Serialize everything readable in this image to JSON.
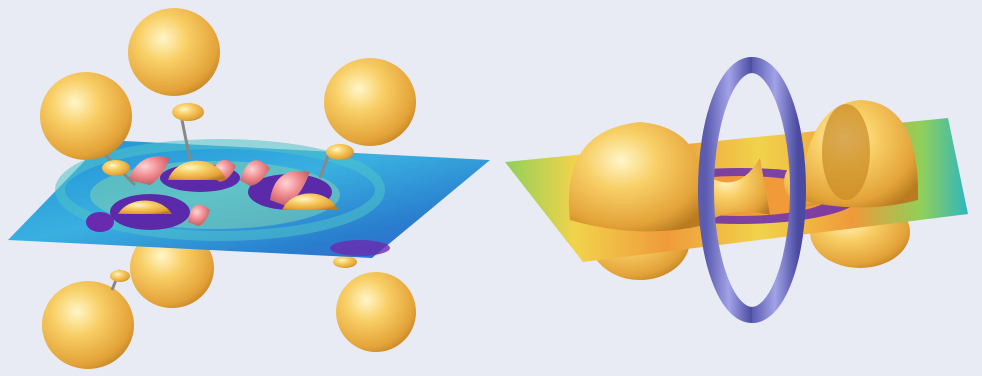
{
  "figure": {
    "background_color": "#e8ebf3",
    "panels": [
      {
        "name": "left-molecule-isosurface",
        "description_visible_text": "",
        "isosurface_color": "#f6bf4a",
        "lobe_color": "#ef8a8f",
        "plane_colors": [
          "#2fa4d8",
          "#52c6c0",
          "#a9d65a",
          "#6a2ab0"
        ]
      },
      {
        "name": "right-molecule-isosurface",
        "description_visible_text": "",
        "isosurface_color": "#f6bf4a",
        "ring_color": "#7f7fcf",
        "plane_colors": [
          "#f09a3a",
          "#f1d34b",
          "#8fd05a",
          "#2fb6c0",
          "#6a2ab0"
        ]
      }
    ]
  }
}
